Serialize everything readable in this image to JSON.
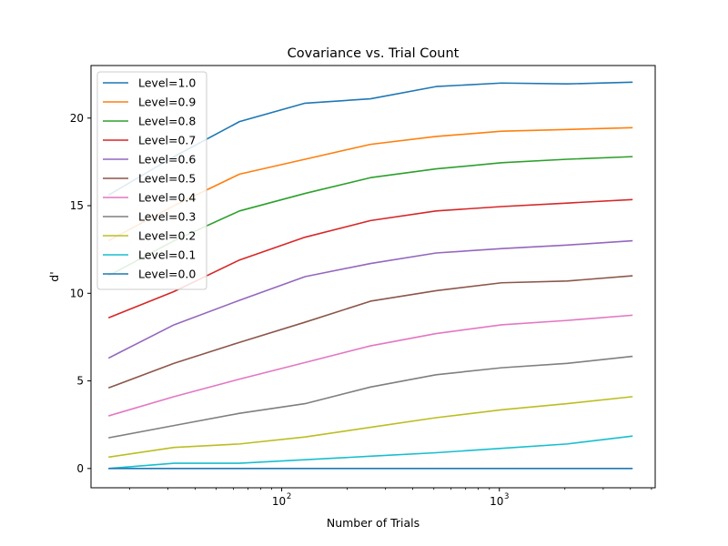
{
  "chart_data": {
    "type": "line",
    "title": "Covariance vs. Trial Count",
    "xlabel": "Number of Trials",
    "ylabel": "d'",
    "xscale": "log",
    "xlim": [
      13.3,
      5200
    ],
    "ylim": [
      -1.1,
      23.0
    ],
    "xticks": [
      {
        "value": 100,
        "label": "10",
        "exp": "2"
      },
      {
        "value": 1000,
        "label": "10",
        "exp": "3"
      }
    ],
    "yticks": [
      0,
      5,
      10,
      15,
      20
    ],
    "grid": false,
    "legend": "top-left",
    "x": [
      16,
      32,
      64,
      128,
      256,
      512,
      1024,
      2048,
      4096
    ],
    "series": [
      {
        "name": "Level=1.0",
        "color": "#1f77b4",
        "values": [
          15.6,
          17.8,
          19.8,
          20.85,
          21.1,
          21.8,
          22.0,
          21.95,
          22.05
        ]
      },
      {
        "name": "Level=0.9",
        "color": "#ff7f0e",
        "values": [
          13.0,
          15.0,
          16.8,
          17.65,
          18.5,
          18.95,
          19.25,
          19.35,
          19.45
        ]
      },
      {
        "name": "Level=0.8",
        "color": "#2ca02c",
        "values": [
          11.0,
          13.0,
          14.7,
          15.7,
          16.6,
          17.1,
          17.45,
          17.65,
          17.8
        ]
      },
      {
        "name": "Level=0.7",
        "color": "#d62728",
        "values": [
          8.6,
          10.1,
          11.9,
          13.2,
          14.15,
          14.7,
          14.95,
          15.15,
          15.35
        ]
      },
      {
        "name": "Level=0.6",
        "color": "#9467bd",
        "values": [
          6.3,
          8.2,
          9.6,
          10.95,
          11.7,
          12.3,
          12.55,
          12.75,
          13.0
        ]
      },
      {
        "name": "Level=0.5",
        "color": "#8c564b",
        "values": [
          4.6,
          6.0,
          7.2,
          8.35,
          9.55,
          10.15,
          10.6,
          10.7,
          11.0
        ]
      },
      {
        "name": "Level=0.4",
        "color": "#e377c2",
        "values": [
          3.0,
          4.1,
          5.1,
          6.05,
          7.0,
          7.7,
          8.2,
          8.45,
          8.75
        ]
      },
      {
        "name": "Level=0.3",
        "color": "#7f7f7f",
        "values": [
          1.75,
          2.45,
          3.15,
          3.7,
          4.65,
          5.35,
          5.75,
          6.0,
          6.4
        ]
      },
      {
        "name": "Level=0.2",
        "color": "#bcbd22",
        "values": [
          0.65,
          1.2,
          1.4,
          1.8,
          2.35,
          2.9,
          3.35,
          3.7,
          4.1
        ]
      },
      {
        "name": "Level=0.1",
        "color": "#17becf",
        "values": [
          0.0,
          0.3,
          0.3,
          0.5,
          0.7,
          0.9,
          1.15,
          1.4,
          1.85
        ]
      },
      {
        "name": "Level=0.0",
        "color": "#1f77b4",
        "values": [
          0.0,
          0.0,
          0.0,
          0.0,
          0.0,
          0.0,
          0.0,
          0.0,
          0.0
        ]
      }
    ]
  }
}
